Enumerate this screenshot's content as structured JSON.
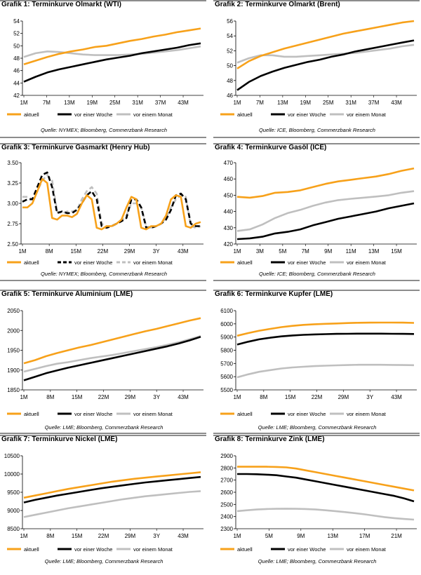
{
  "colors": {
    "aktuell": "#f7a11a",
    "woche": "#000000",
    "monat": "#bfbfbf"
  },
  "chart_data": [
    {
      "type": "line",
      "label_prefix": "Grafik 1:",
      "title": "Terminkurve Olmarkt (WTI)",
      "source": "Quelle: NYMEX; Bloomberg, Commerzbank Research",
      "ylim": [
        42,
        54
      ],
      "yticks": [
        "42",
        "44",
        "46",
        "48",
        "50",
        "52",
        "54"
      ],
      "xticks": [
        "1M",
        "7M",
        "13M",
        "19M",
        "25M",
        "31M",
        "37M",
        "43M"
      ],
      "legend": [
        "aktuell",
        "vor einer Woche",
        "vor einem Monat"
      ],
      "series": [
        {
          "name": "aktuell",
          "style": "solid",
          "values": [
            47.0,
            47.6,
            48.2,
            48.7,
            49.1,
            49.4,
            49.8,
            50.0,
            50.4,
            50.8,
            51.1,
            51.5,
            51.8,
            52.2,
            52.5,
            52.8
          ]
        },
        {
          "name": "vor einer Woche",
          "style": "solid",
          "values": [
            44.2,
            45.0,
            45.7,
            46.2,
            46.6,
            47.0,
            47.4,
            47.8,
            48.1,
            48.4,
            48.8,
            49.1,
            49.4,
            49.7,
            50.1,
            50.4
          ]
        },
        {
          "name": "vor einem Monat",
          "style": "solid",
          "values": [
            48.2,
            48.8,
            49.1,
            49.0,
            48.8,
            48.6,
            48.5,
            48.5,
            48.5,
            48.6,
            48.7,
            48.9,
            49.1,
            49.3,
            49.6,
            49.9
          ]
        }
      ]
    },
    {
      "type": "line",
      "label_prefix": "Grafik 2:",
      "title": "Terminkurve Olmarkt (Brent)",
      "source": "Quelle: ICE, Bloomberg, Commerzbank Research",
      "ylim": [
        46,
        56
      ],
      "yticks": [
        "46",
        "48",
        "50",
        "52",
        "54",
        "56"
      ],
      "xticks": [
        "1M",
        "7M",
        "13M",
        "19M",
        "25M",
        "31M",
        "37M",
        "43M"
      ],
      "legend": [
        "aktuell",
        "vor einer Woche",
        "vor einem Monat"
      ],
      "series": [
        {
          "name": "aktuell",
          "style": "solid",
          "values": [
            49.6,
            50.6,
            51.3,
            51.8,
            52.3,
            52.7,
            53.1,
            53.5,
            53.9,
            54.3,
            54.6,
            54.9,
            55.2,
            55.5,
            55.8,
            56.0
          ]
        },
        {
          "name": "vor einer Woche",
          "style": "solid",
          "values": [
            46.7,
            47.8,
            48.6,
            49.2,
            49.7,
            50.1,
            50.5,
            50.8,
            51.2,
            51.5,
            51.9,
            52.2,
            52.5,
            52.8,
            53.1,
            53.4
          ]
        },
        {
          "name": "vor einem Monat",
          "style": "solid",
          "values": [
            50.4,
            51.0,
            51.4,
            51.4,
            51.2,
            51.2,
            51.3,
            51.4,
            51.5,
            51.6,
            51.7,
            51.9,
            52.1,
            52.3,
            52.6,
            52.8
          ]
        }
      ]
    },
    {
      "type": "line",
      "label_prefix": "Grafik 3:",
      "title": "Terminkurve Gasmarkt (Henry Hub)",
      "source": "Quelle: NYMEX; Bloomberg, Commerzbank Research",
      "ylim": [
        2.5,
        3.5
      ],
      "yticks": [
        "2.50",
        "2.75",
        "3.00",
        "3.25",
        "3.50"
      ],
      "xticks": [
        "1M",
        "8M",
        "15M",
        "22M",
        "29M",
        "3Y",
        "43M"
      ],
      "legend": [
        "aktuell",
        "vor einer Woche",
        "vor einem Monat"
      ],
      "series": [
        {
          "name": "aktuell",
          "style": "solid",
          "values": [
            2.95,
            2.95,
            3.0,
            3.15,
            3.3,
            3.25,
            2.82,
            2.8,
            2.85,
            2.85,
            2.83,
            2.87,
            3.0,
            3.1,
            3.05,
            2.7,
            2.68,
            2.72,
            2.72,
            2.75,
            2.8,
            2.95,
            3.08,
            3.05,
            2.7,
            2.68,
            2.72,
            2.72,
            2.75,
            2.85,
            3.05,
            3.1,
            3.08,
            2.72,
            2.7,
            2.75,
            2.77
          ]
        },
        {
          "name": "vor einer Woche",
          "style": "dashed",
          "values": [
            3.02,
            3.05,
            3.05,
            3.2,
            3.35,
            3.38,
            3.2,
            2.88,
            2.9,
            2.88,
            2.88,
            2.92,
            3.0,
            3.1,
            3.15,
            3.05,
            2.72,
            2.7,
            2.72,
            2.75,
            2.78,
            2.82,
            3.05,
            3.05,
            2.95,
            2.7,
            2.7,
            2.72,
            2.75,
            2.8,
            2.92,
            3.1,
            3.12,
            3.05,
            2.75,
            2.72,
            2.72
          ]
        },
        {
          "name": "vor einem Monat",
          "style": "dashed",
          "values": [
            3.08,
            3.08,
            3.05,
            3.15,
            3.28,
            3.35,
            3.28,
            2.9,
            2.88,
            2.9,
            2.9,
            2.92,
            3.05,
            3.15,
            3.2,
            3.12,
            2.75,
            2.72,
            2.72,
            2.75,
            2.78,
            2.85,
            3.0,
            3.0,
            2.95,
            2.72,
            2.7,
            2.72,
            2.75,
            2.82,
            2.95,
            3.05,
            3.1,
            3.08,
            2.72,
            2.7,
            2.72
          ]
        }
      ]
    },
    {
      "type": "line",
      "label_prefix": "Grafik 4:",
      "title": "Terminkurve Gasöl (ICE)",
      "source": "Quelle: ICE; Bloomberg, Commerzbank Research",
      "ylim": [
        420,
        470
      ],
      "yticks": [
        "420",
        "430",
        "440",
        "450",
        "460",
        "470"
      ],
      "xticks": [
        "1M",
        "3M",
        "5M",
        "7M",
        "9M",
        "11M",
        "13M",
        "15M"
      ],
      "legend": [
        "aktuell",
        "vor einer Woche",
        "vor einem Monat"
      ],
      "series": [
        {
          "name": "aktuell",
          "style": "solid",
          "values": [
            449,
            448.5,
            449.5,
            451.5,
            452,
            453,
            455,
            457,
            458.5,
            459.5,
            460.5,
            461.5,
            463,
            465,
            466.5
          ]
        },
        {
          "name": "vor einer Woche",
          "style": "solid",
          "values": [
            423,
            423.5,
            424.5,
            426.5,
            427.5,
            429,
            431.5,
            433.5,
            435.5,
            437,
            438.5,
            440,
            442,
            443.5,
            445
          ]
        },
        {
          "name": "vor einem Monat",
          "style": "solid",
          "values": [
            428,
            429,
            432,
            436,
            439,
            441,
            443.5,
            445.5,
            447,
            447.8,
            448.5,
            449.2,
            450,
            451.5,
            452.5
          ]
        }
      ]
    },
    {
      "type": "line",
      "label_prefix": "Grafik 5:",
      "title": "Terminkurve Aluminium (LME)",
      "source": "Quelle: LME; Bloomberg, Commerzbank Research",
      "ylim": [
        1850,
        2050
      ],
      "yticks": [
        "1850",
        "1900",
        "1950",
        "2000",
        "2050"
      ],
      "xticks": [
        "1M",
        "8M",
        "15M",
        "22M",
        "29M",
        "3Y",
        "43M"
      ],
      "legend": [
        "aktuell",
        "vor einer Woche",
        "vor einem Monat"
      ],
      "series": [
        {
          "name": "aktuell",
          "style": "solid",
          "values": [
            1917,
            1925,
            1935,
            1943,
            1950,
            1957,
            1963,
            1970,
            1977,
            1984,
            1991,
            1998,
            2004,
            2011,
            2018,
            2025,
            2031
          ]
        },
        {
          "name": "vor einer Woche",
          "style": "solid",
          "values": [
            1874,
            1883,
            1892,
            1899,
            1906,
            1912,
            1918,
            1924,
            1930,
            1936,
            1942,
            1948,
            1954,
            1960,
            1967,
            1975,
            1984
          ]
        },
        {
          "name": "vor einem Monat",
          "style": "solid",
          "values": [
            1896,
            1903,
            1910,
            1916,
            1920,
            1925,
            1930,
            1934,
            1938,
            1943,
            1948,
            1953,
            1958,
            1964,
            1970,
            1978,
            1986
          ]
        }
      ]
    },
    {
      "type": "line",
      "label_prefix": "Grafik 6:",
      "title": "Terminkurve Kupfer (LME)",
      "source": "Quelle: LME; Bloomberg, Commerzbank Research",
      "ylim": [
        5500,
        6100
      ],
      "yticks": [
        "5500",
        "5600",
        "5700",
        "5800",
        "5900",
        "6000",
        "6100"
      ],
      "xticks": [
        "1M",
        "8M",
        "15M",
        "22M",
        "29M",
        "3Y",
        "43M"
      ],
      "legend": [
        "aktuell",
        "vor einer Woche",
        "vor einem Monat"
      ],
      "series": [
        {
          "name": "aktuell",
          "style": "solid",
          "values": [
            5910,
            5930,
            5948,
            5962,
            5975,
            5985,
            5992,
            5997,
            6000,
            6003,
            6006,
            6008,
            6009,
            6010,
            6010,
            6009,
            6007
          ]
        },
        {
          "name": "vor einer Woche",
          "style": "solid",
          "values": [
            5843,
            5865,
            5883,
            5895,
            5905,
            5912,
            5917,
            5920,
            5922,
            5924,
            5925,
            5926,
            5926,
            5926,
            5925,
            5924,
            5923
          ]
        },
        {
          "name": "vor einem Monat",
          "style": "solid",
          "values": [
            5595,
            5618,
            5637,
            5650,
            5662,
            5670,
            5675,
            5680,
            5683,
            5686,
            5688,
            5690,
            5690,
            5690,
            5689,
            5688,
            5687
          ]
        }
      ]
    },
    {
      "type": "line",
      "label_prefix": "Grafik 7:",
      "title": "Terminkurve Nickel (LME)",
      "source": "Quelle: LME; Bloomberg, Commerzbank Research",
      "ylim": [
        8500,
        10500
      ],
      "yticks": [
        "8500",
        "9000",
        "9500",
        "10000",
        "10500"
      ],
      "xticks": [
        "1M",
        "8M",
        "15M",
        "22M",
        "29M",
        "3Y",
        "43M"
      ],
      "legend": [
        "aktuell",
        "vor einer Woche",
        "vor einem Monat"
      ],
      "series": [
        {
          "name": "aktuell",
          "style": "solid",
          "values": [
            9350,
            9410,
            9470,
            9530,
            9590,
            9640,
            9690,
            9740,
            9790,
            9830,
            9870,
            9900,
            9930,
            9960,
            9990,
            10020,
            10050
          ]
        },
        {
          "name": "vor einer Woche",
          "style": "solid",
          "values": [
            9220,
            9290,
            9350,
            9410,
            9460,
            9510,
            9560,
            9610,
            9650,
            9690,
            9730,
            9770,
            9800,
            9830,
            9860,
            9890,
            9920
          ]
        },
        {
          "name": "vor einem Monat",
          "style": "solid",
          "values": [
            8820,
            8880,
            8940,
            9000,
            9060,
            9110,
            9160,
            9210,
            9260,
            9310,
            9350,
            9390,
            9420,
            9450,
            9480,
            9510,
            9530
          ]
        }
      ]
    },
    {
      "type": "line",
      "label_prefix": "Grafik 8:",
      "title": "Terminkurve Zink (LME)",
      "source": "Quelle: LME; Bloomberg, Commerzbank Research",
      "ylim": [
        2300,
        2900
      ],
      "yticks": [
        "2300",
        "2400",
        "2500",
        "2600",
        "2700",
        "2800",
        "2900"
      ],
      "xticks": [
        "1M",
        "5M",
        "9M",
        "13M",
        "17M",
        "21M"
      ],
      "legend": [
        "aktuell",
        "vor einer Woche",
        "vor einem Monat"
      ],
      "series": [
        {
          "name": "aktuell",
          "style": "solid",
          "values": [
            2810,
            2810,
            2810,
            2810,
            2808,
            2805,
            2795,
            2780,
            2765,
            2750,
            2735,
            2720,
            2705,
            2690,
            2675,
            2660,
            2645,
            2630,
            2615
          ]
        },
        {
          "name": "vor einer Woche",
          "style": "solid",
          "values": [
            2750,
            2750,
            2748,
            2745,
            2740,
            2730,
            2720,
            2705,
            2690,
            2675,
            2660,
            2645,
            2630,
            2615,
            2600,
            2585,
            2570,
            2550,
            2525
          ]
        },
        {
          "name": "vor einem Monat",
          "style": "solid",
          "values": [
            2445,
            2452,
            2458,
            2462,
            2464,
            2465,
            2464,
            2462,
            2458,
            2452,
            2445,
            2437,
            2428,
            2418,
            2407,
            2396,
            2387,
            2380,
            2375
          ]
        }
      ]
    }
  ]
}
